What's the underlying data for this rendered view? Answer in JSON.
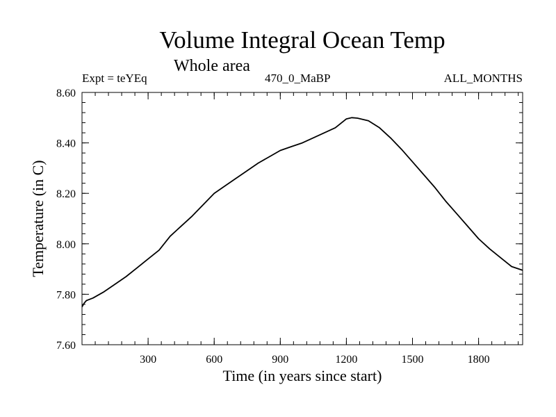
{
  "header": {
    "title": "Volume Integral Ocean Temp",
    "subtitle": "Whole area",
    "left_label": "Expt = teYEq",
    "center_label": "470_0_MaBP",
    "right_label": "ALL_MONTHS"
  },
  "chart_data": {
    "type": "line",
    "title": "Volume Integral Ocean Temp",
    "xlabel": "Time (in years since start)",
    "ylabel": "Temperature (in C)",
    "xlim": [
      0,
      2000
    ],
    "ylim": [
      7.6,
      8.6
    ],
    "xticks": [
      300,
      600,
      900,
      1200,
      1500,
      1800
    ],
    "xtick_labels": [
      "300",
      "600",
      "900",
      "1200",
      "1500",
      "1800"
    ],
    "yticks": [
      7.6,
      7.8,
      8.0,
      8.2,
      8.4,
      8.6
    ],
    "ytick_labels": [
      "7.60",
      "7.80",
      "8.00",
      "8.20",
      "8.40",
      "8.60"
    ],
    "grid": false,
    "series": [
      {
        "name": "Volume integral ocean temperature",
        "x": [
          0,
          10,
          20,
          50,
          100,
          150,
          200,
          250,
          300,
          350,
          400,
          450,
          500,
          550,
          600,
          650,
          700,
          750,
          800,
          850,
          900,
          950,
          1000,
          1050,
          1100,
          1150,
          1200,
          1225,
          1250,
          1300,
          1350,
          1400,
          1450,
          1500,
          1550,
          1600,
          1650,
          1700,
          1750,
          1800,
          1850,
          1900,
          1950,
          2000
        ],
        "y": [
          7.75,
          7.765,
          7.775,
          7.785,
          7.81,
          7.84,
          7.87,
          7.905,
          7.94,
          7.975,
          8.03,
          8.07,
          8.11,
          8.155,
          8.2,
          8.23,
          8.26,
          8.29,
          8.32,
          8.345,
          8.37,
          8.385,
          8.4,
          8.42,
          8.44,
          8.46,
          8.495,
          8.5,
          8.498,
          8.488,
          8.46,
          8.42,
          8.375,
          8.325,
          8.275,
          8.225,
          8.17,
          8.12,
          8.07,
          8.02,
          7.98,
          7.945,
          7.91,
          7.895
        ]
      }
    ]
  }
}
